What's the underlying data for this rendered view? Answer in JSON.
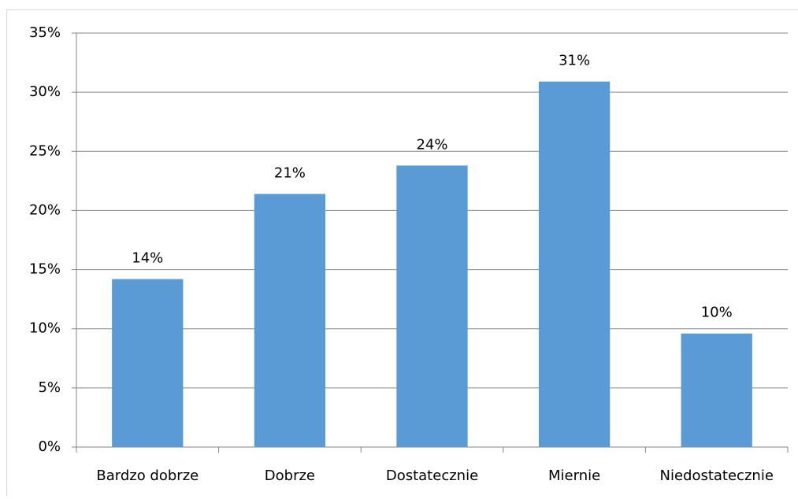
{
  "chart_data": {
    "type": "bar",
    "categories": [
      "Bardzo dobrze",
      "Dobrze",
      "Dostatecznie",
      "Miernie",
      "Niedostatecznie"
    ],
    "values": [
      14.2,
      21.4,
      23.8,
      30.9,
      9.6
    ],
    "value_labels": [
      "14%",
      "21%",
      "24%",
      "31%",
      "10%"
    ],
    "color": "#5b9bd5",
    "ylim": [
      0,
      35
    ],
    "yticks": [
      {
        "value": 0,
        "label": "0%"
      },
      {
        "value": 5,
        "label": "5%"
      },
      {
        "value": 10,
        "label": "10%"
      },
      {
        "value": 15,
        "label": "15%"
      },
      {
        "value": 20,
        "label": "20%"
      },
      {
        "value": 25,
        "label": "25%"
      },
      {
        "value": 30,
        "label": "30%"
      },
      {
        "value": 35,
        "label": "35%"
      }
    ],
    "grid": true
  }
}
